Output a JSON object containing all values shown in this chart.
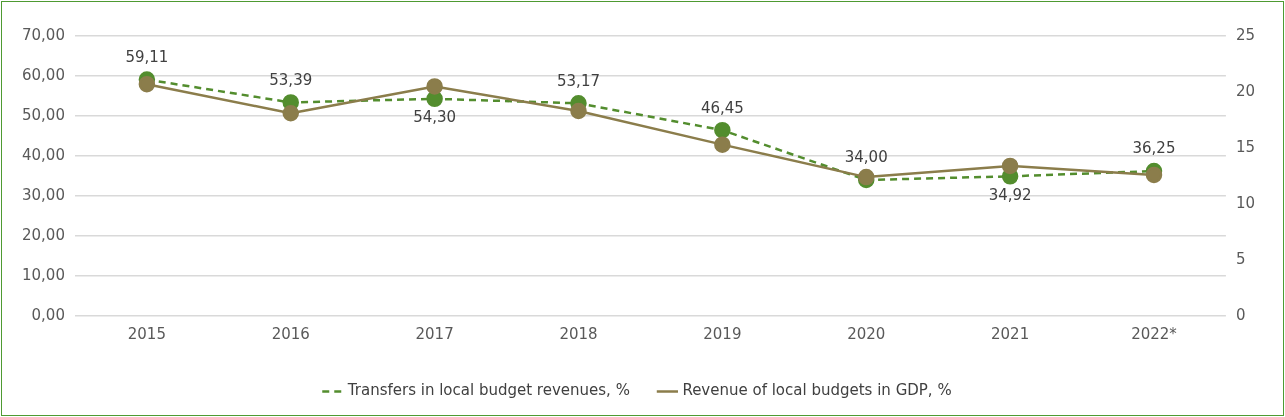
{
  "chart_data": {
    "type": "line",
    "categories": [
      "2015",
      "2016",
      "2017",
      "2018",
      "2019",
      "2020",
      "2021",
      "2022*"
    ],
    "series": [
      {
        "name": "Transfers in local budget revenues, %",
        "color": "#538d2e",
        "line_style": "dashed",
        "values": [
          59.11,
          53.39,
          54.3,
          53.17,
          46.45,
          34.0,
          34.92,
          36.25
        ],
        "value_labels": [
          "59,11",
          "53,39",
          "54,30",
          "53,17",
          "46,45",
          "34,00",
          "34,92",
          "36,25"
        ]
      },
      {
        "name": "Revenue of local budgets in GDP, %",
        "color": "#8b7d4b",
        "line_style": "solid",
        "axis": "y2",
        "values": [
          20.7,
          18.1,
          20.5,
          18.3,
          15.3,
          12.4,
          13.4,
          12.6
        ]
      }
    ],
    "ylim": [
      0,
      70
    ],
    "yticks": [
      {
        "value": 0,
        "label": "0,00"
      },
      {
        "value": 10,
        "label": "10,00"
      },
      {
        "value": 20,
        "label": "20,00"
      },
      {
        "value": 30,
        "label": "30,00"
      },
      {
        "value": 40,
        "label": "40,00"
      },
      {
        "value": 50,
        "label": "50,00"
      },
      {
        "value": 60,
        "label": "60,00"
      },
      {
        "value": 70,
        "label": "70,00"
      }
    ],
    "y2lim": [
      0,
      25
    ],
    "y2ticks": [
      0,
      5,
      10,
      15,
      20,
      25
    ],
    "grid": "y",
    "legend": "bottom",
    "marker": "circle"
  }
}
